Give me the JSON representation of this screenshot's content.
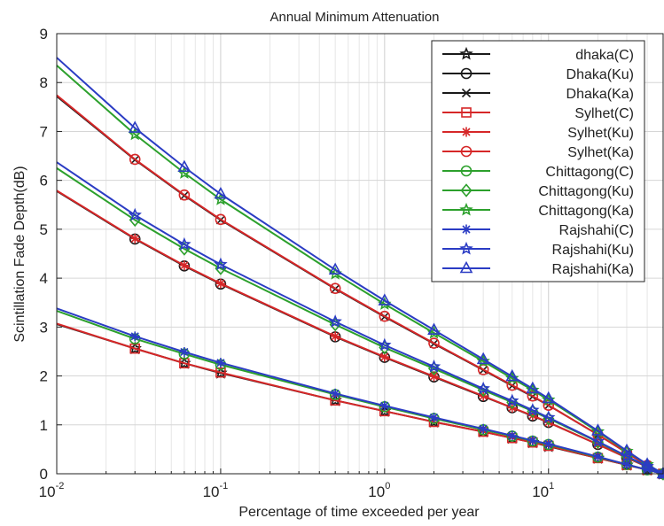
{
  "chart_data": {
    "type": "line",
    "title": "Annual Minimum Attenuation",
    "xlabel": "Percentage of time exceeded per year",
    "ylabel": "Scintillation Fade Depth(dB)",
    "xscale": "log",
    "xlim": [
      0.01,
      50
    ],
    "ylim": [
      0,
      9
    ],
    "grid": true,
    "legend_position": "top-right",
    "x": [
      0.01,
      0.03,
      0.06,
      0.1,
      0.5,
      1,
      2,
      4,
      6,
      8,
      10,
      20,
      30,
      40,
      50
    ],
    "x_ticks": [
      {
        "value": 0.01,
        "base": "10",
        "exp": "-2"
      },
      {
        "value": 0.1,
        "base": "10",
        "exp": "-1"
      },
      {
        "value": 1,
        "base": "10",
        "exp": "0"
      },
      {
        "value": 10,
        "base": "10",
        "exp": "1"
      }
    ],
    "y_ticks": [
      "0",
      "1",
      "2",
      "3",
      "4",
      "5",
      "6",
      "7",
      "8",
      "9"
    ],
    "series": [
      {
        "name": "dhaka(C)",
        "color": "#1a1a1a",
        "marker": "star",
        "values": [
          3.06,
          2.56,
          2.26,
          2.06,
          1.5,
          1.28,
          1.06,
          0.86,
          0.73,
          0.64,
          0.56,
          0.32,
          0.18,
          0.08,
          0.0
        ]
      },
      {
        "name": "Dhaka(Ku)",
        "color": "#1a1a1a",
        "marker": "circle",
        "values": [
          5.78,
          4.8,
          4.25,
          3.88,
          2.8,
          2.38,
          1.98,
          1.58,
          1.35,
          1.18,
          1.05,
          0.6,
          0.33,
          0.14,
          0.0
        ]
      },
      {
        "name": "Dhaka(Ka)",
        "color": "#1a1a1a",
        "marker": "x",
        "values": [
          7.72,
          6.42,
          5.69,
          5.19,
          3.78,
          3.21,
          2.66,
          2.12,
          1.8,
          1.58,
          1.4,
          0.8,
          0.43,
          0.17,
          0.0
        ]
      },
      {
        "name": "Sylhet(C)",
        "color": "#d62728",
        "marker": "square",
        "values": [
          3.07,
          2.56,
          2.26,
          2.07,
          1.5,
          1.28,
          1.06,
          0.86,
          0.73,
          0.64,
          0.57,
          0.32,
          0.18,
          0.08,
          0.0
        ]
      },
      {
        "name": "Sylhet(Ku)",
        "color": "#d62728",
        "marker": "asterisk",
        "values": [
          5.79,
          4.81,
          4.26,
          3.89,
          2.81,
          2.39,
          1.99,
          1.59,
          1.35,
          1.19,
          1.05,
          0.6,
          0.33,
          0.14,
          0.0
        ]
      },
      {
        "name": "Sylhet(Ka)",
        "color": "#d62728",
        "marker": "circle",
        "values": [
          7.74,
          6.43,
          5.7,
          5.2,
          3.79,
          3.22,
          2.67,
          2.13,
          1.81,
          1.59,
          1.4,
          0.8,
          0.43,
          0.17,
          0.0
        ]
      },
      {
        "name": "Chittagong(C)",
        "color": "#2ca02c",
        "marker": "circle",
        "values": [
          3.33,
          2.76,
          2.45,
          2.23,
          1.62,
          1.37,
          1.13,
          0.9,
          0.77,
          0.67,
          0.6,
          0.34,
          0.19,
          0.08,
          0.0
        ]
      },
      {
        "name": "Chittagong(Ku)",
        "color": "#2ca02c",
        "marker": "diamond",
        "values": [
          6.25,
          5.19,
          4.6,
          4.2,
          3.05,
          2.58,
          2.15,
          1.71,
          1.46,
          1.28,
          1.13,
          0.65,
          0.35,
          0.15,
          0.0
        ]
      },
      {
        "name": "Chittagong(Ka)",
        "color": "#2ca02c",
        "marker": "star",
        "values": [
          8.35,
          6.94,
          6.15,
          5.61,
          4.09,
          3.47,
          2.88,
          2.3,
          1.95,
          1.71,
          1.51,
          0.86,
          0.46,
          0.19,
          0.0
        ]
      },
      {
        "name": "Rajshahi(C)",
        "color": "#2b3cc4",
        "marker": "asterisk",
        "values": [
          3.38,
          2.81,
          2.49,
          2.27,
          1.64,
          1.39,
          1.15,
          0.92,
          0.78,
          0.68,
          0.61,
          0.35,
          0.19,
          0.08,
          0.0
        ]
      },
      {
        "name": "Rajshahi(Ku)",
        "color": "#2b3cc4",
        "marker": "star",
        "values": [
          6.37,
          5.29,
          4.69,
          4.28,
          3.11,
          2.63,
          2.19,
          1.74,
          1.49,
          1.3,
          1.15,
          0.66,
          0.36,
          0.15,
          0.0
        ]
      },
      {
        "name": "Rajshahi(Ka)",
        "color": "#2b3cc4",
        "marker": "triangle",
        "values": [
          8.51,
          7.07,
          6.27,
          5.72,
          4.17,
          3.54,
          2.94,
          2.34,
          1.99,
          1.74,
          1.54,
          0.88,
          0.47,
          0.19,
          0.0
        ]
      }
    ]
  }
}
